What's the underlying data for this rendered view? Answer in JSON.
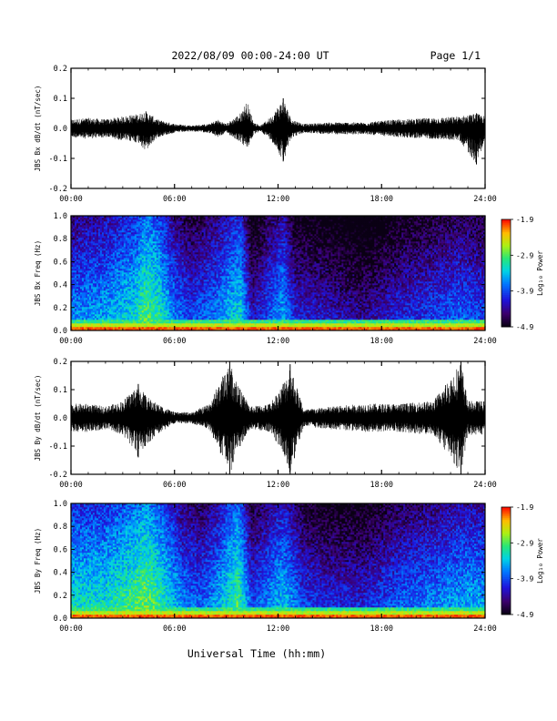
{
  "header": {
    "title": "2022/08/09  00:00-24:00 UT",
    "page": "Page 1/1"
  },
  "xlabel": "Universal Time (hh:mm)",
  "chart_data": [
    {
      "type": "line",
      "ylabel": "JBS Bx dB/dt (nT/sec)",
      "xlim": [
        0,
        24
      ],
      "ylim": [
        -0.2,
        0.2
      ],
      "xticks": [
        "00:00",
        "06:00",
        "12:00",
        "18:00",
        "24:00"
      ],
      "yticks": [
        "-0.2",
        "-0.1",
        "0.0",
        "0.1",
        "0.2"
      ],
      "envelope": [
        {
          "x": 0,
          "min": -0.03,
          "max": 0.03
        },
        {
          "x": 1,
          "min": -0.035,
          "max": 0.035
        },
        {
          "x": 2,
          "min": -0.03,
          "max": 0.03
        },
        {
          "x": 3,
          "min": -0.04,
          "max": 0.04
        },
        {
          "x": 4,
          "min": -0.05,
          "max": 0.05
        },
        {
          "x": 4.3,
          "min": -0.08,
          "max": 0.06
        },
        {
          "x": 5,
          "min": -0.03,
          "max": 0.03
        },
        {
          "x": 6,
          "min": -0.015,
          "max": 0.015
        },
        {
          "x": 7,
          "min": -0.01,
          "max": 0.01
        },
        {
          "x": 8,
          "min": -0.015,
          "max": 0.015
        },
        {
          "x": 8.5,
          "min": -0.03,
          "max": 0.03
        },
        {
          "x": 9,
          "min": -0.015,
          "max": 0.015
        },
        {
          "x": 9.8,
          "min": -0.045,
          "max": 0.05
        },
        {
          "x": 10.2,
          "min": -0.07,
          "max": 0.09
        },
        {
          "x": 10.6,
          "min": -0.02,
          "max": 0.02
        },
        {
          "x": 11,
          "min": -0.01,
          "max": 0.01
        },
        {
          "x": 11.6,
          "min": -0.04,
          "max": 0.04
        },
        {
          "x": 12.3,
          "min": -0.11,
          "max": 0.1
        },
        {
          "x": 12.8,
          "min": -0.03,
          "max": 0.03
        },
        {
          "x": 13.5,
          "min": -0.015,
          "max": 0.015
        },
        {
          "x": 15,
          "min": -0.02,
          "max": 0.02
        },
        {
          "x": 17,
          "min": -0.02,
          "max": 0.02
        },
        {
          "x": 19,
          "min": -0.03,
          "max": 0.03
        },
        {
          "x": 21,
          "min": -0.035,
          "max": 0.035
        },
        {
          "x": 22.5,
          "min": -0.04,
          "max": 0.04
        },
        {
          "x": 23.5,
          "min": -0.12,
          "max": 0.05
        },
        {
          "x": 24,
          "min": -0.04,
          "max": 0.04
        }
      ]
    },
    {
      "type": "heatmap",
      "ylabel": "JBS Bx Freq (Hz)",
      "xlim": [
        0,
        24
      ],
      "ylim": [
        0,
        1.0
      ],
      "xticks": [
        "00:00",
        "06:00",
        "12:00",
        "18:00",
        "24:00"
      ],
      "yticks": [
        "0.0",
        "0.2",
        "0.4",
        "0.6",
        "0.8",
        "1.0"
      ],
      "colorbar": {
        "label": "Log₁₀ Power",
        "range": [
          -4.9,
          -1.9
        ],
        "ticks": [
          "-1.9",
          "-2.9",
          "-3.9",
          "-4.9"
        ]
      },
      "activity": [
        {
          "x": 0,
          "level": 0.45
        },
        {
          "x": 2,
          "level": 0.5
        },
        {
          "x": 3.8,
          "level": 0.6
        },
        {
          "x": 4.2,
          "level": 0.7
        },
        {
          "x": 5,
          "level": 0.65
        },
        {
          "x": 6,
          "level": 0.45
        },
        {
          "x": 7,
          "level": 0.35
        },
        {
          "x": 8.5,
          "level": 0.45
        },
        {
          "x": 9.8,
          "level": 0.6
        },
        {
          "x": 10.5,
          "level": 0.25
        },
        {
          "x": 12.3,
          "level": 0.5
        },
        {
          "x": 13,
          "level": 0.3
        },
        {
          "x": 15,
          "level": 0.25
        },
        {
          "x": 17,
          "level": 0.2
        },
        {
          "x": 19,
          "level": 0.3
        },
        {
          "x": 21,
          "level": 0.35
        },
        {
          "x": 22.5,
          "level": 0.4
        },
        {
          "x": 24,
          "level": 0.35
        }
      ]
    },
    {
      "type": "line",
      "ylabel": "JBS By dB/dt (nT/sec)",
      "xlim": [
        0,
        24
      ],
      "ylim": [
        -0.2,
        0.2
      ],
      "xticks": [
        "00:00",
        "06:00",
        "12:00",
        "18:00",
        "24:00"
      ],
      "yticks": [
        "-0.2",
        "-0.1",
        "0.0",
        "0.1",
        "0.2"
      ],
      "envelope": [
        {
          "x": 0,
          "min": -0.05,
          "max": 0.05
        },
        {
          "x": 1,
          "min": -0.05,
          "max": 0.05
        },
        {
          "x": 2,
          "min": -0.04,
          "max": 0.04
        },
        {
          "x": 3,
          "min": -0.06,
          "max": 0.06
        },
        {
          "x": 3.9,
          "min": -0.14,
          "max": 0.12
        },
        {
          "x": 4.3,
          "min": -0.1,
          "max": 0.08
        },
        {
          "x": 5,
          "min": -0.06,
          "max": 0.05
        },
        {
          "x": 6,
          "min": -0.02,
          "max": 0.02
        },
        {
          "x": 7,
          "min": -0.02,
          "max": 0.02
        },
        {
          "x": 8,
          "min": -0.04,
          "max": 0.05
        },
        {
          "x": 9.2,
          "min": -0.2,
          "max": 0.2
        },
        {
          "x": 9.8,
          "min": -0.1,
          "max": 0.1
        },
        {
          "x": 10.4,
          "min": -0.04,
          "max": 0.04
        },
        {
          "x": 11.5,
          "min": -0.05,
          "max": 0.05
        },
        {
          "x": 12.3,
          "min": -0.12,
          "max": 0.12
        },
        {
          "x": 12.7,
          "min": -0.2,
          "max": 0.19
        },
        {
          "x": 13.5,
          "min": -0.03,
          "max": 0.03
        },
        {
          "x": 15,
          "min": -0.04,
          "max": 0.04
        },
        {
          "x": 17,
          "min": -0.05,
          "max": 0.05
        },
        {
          "x": 19,
          "min": -0.05,
          "max": 0.05
        },
        {
          "x": 21,
          "min": -0.06,
          "max": 0.06
        },
        {
          "x": 22.6,
          "min": -0.2,
          "max": 0.2
        },
        {
          "x": 23,
          "min": -0.06,
          "max": 0.06
        },
        {
          "x": 24,
          "min": -0.06,
          "max": 0.06
        }
      ]
    },
    {
      "type": "heatmap",
      "ylabel": "JBS By Freq (Hz)",
      "xlim": [
        0,
        24
      ],
      "ylim": [
        0,
        1.0
      ],
      "xticks": [
        "00:00",
        "06:00",
        "12:00",
        "18:00",
        "24:00"
      ],
      "yticks": [
        "0.0",
        "0.2",
        "0.4",
        "0.6",
        "0.8",
        "1.0"
      ],
      "colorbar": {
        "label": "Log₁₀ Power",
        "range": [
          -4.9,
          -1.9
        ],
        "ticks": [
          "-1.9",
          "-2.9",
          "-3.9",
          "-4.9"
        ]
      },
      "activity": [
        {
          "x": 0,
          "level": 0.6
        },
        {
          "x": 2,
          "level": 0.6
        },
        {
          "x": 3.8,
          "level": 0.7
        },
        {
          "x": 4.3,
          "level": 0.75
        },
        {
          "x": 5.2,
          "level": 0.65
        },
        {
          "x": 6.5,
          "level": 0.45
        },
        {
          "x": 7.5,
          "level": 0.4
        },
        {
          "x": 8.5,
          "level": 0.5
        },
        {
          "x": 9.7,
          "level": 0.7
        },
        {
          "x": 10.5,
          "level": 0.35
        },
        {
          "x": 12.3,
          "level": 0.55
        },
        {
          "x": 13.5,
          "level": 0.35
        },
        {
          "x": 15,
          "level": 0.3
        },
        {
          "x": 17,
          "level": 0.3
        },
        {
          "x": 19,
          "level": 0.4
        },
        {
          "x": 21,
          "level": 0.45
        },
        {
          "x": 22.5,
          "level": 0.5
        },
        {
          "x": 24,
          "level": 0.5
        }
      ]
    }
  ]
}
